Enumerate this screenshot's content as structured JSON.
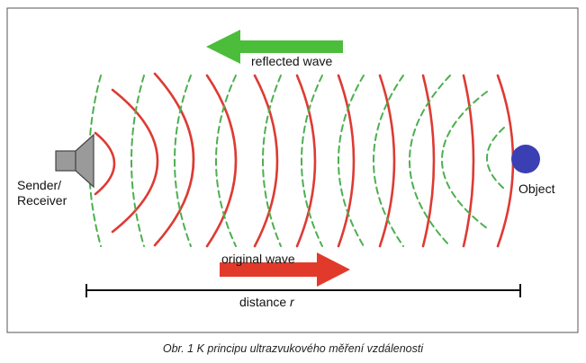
{
  "figure": {
    "labels": {
      "reflected_wave": "reflected wave",
      "original_wave": "original wave",
      "distance": "distance",
      "distance_variable": "r",
      "sender_line1": "Sender/",
      "sender_line2": "Receiver",
      "object": "Object"
    },
    "colors": {
      "original_wave": "#dd3b33",
      "reflected_wave": "#4caf50",
      "reflected_arrow": "#4bbd3a",
      "original_arrow": "#e23a2a",
      "object": "#3a3fb3",
      "transducer": "#9a9a9a",
      "frame": "#555555"
    },
    "icons": {
      "transducer": "speaker-icon",
      "object": "circle-object-icon"
    }
  },
  "caption": "Obr. 1  K principu ultrazvukového měření vzdálenosti"
}
